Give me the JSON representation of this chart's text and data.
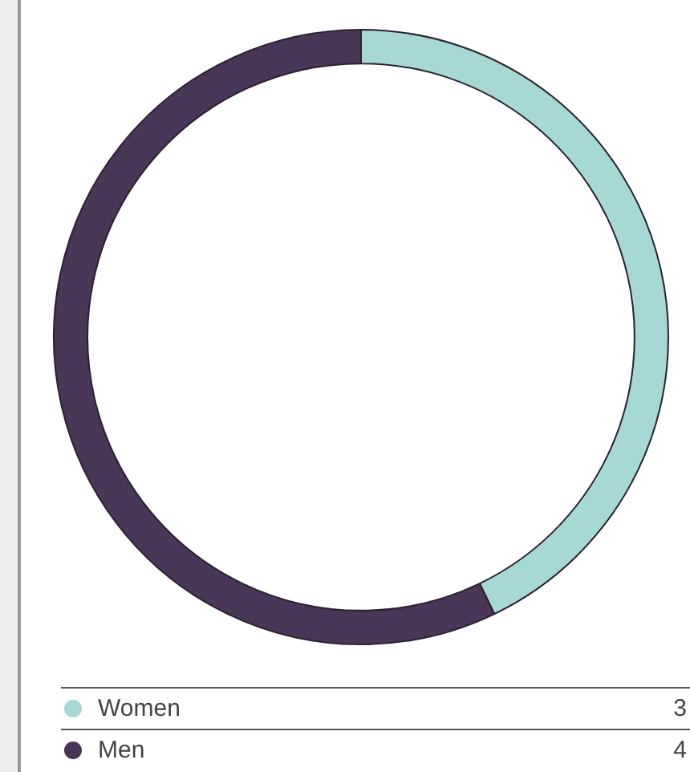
{
  "chart_data": {
    "type": "donut",
    "categories": [
      "Women",
      "Men"
    ],
    "values": [
      3,
      4
    ],
    "colors": [
      "#a6d9d6",
      "#4a3757"
    ],
    "legend": "bottom",
    "data_labels": true
  }
}
